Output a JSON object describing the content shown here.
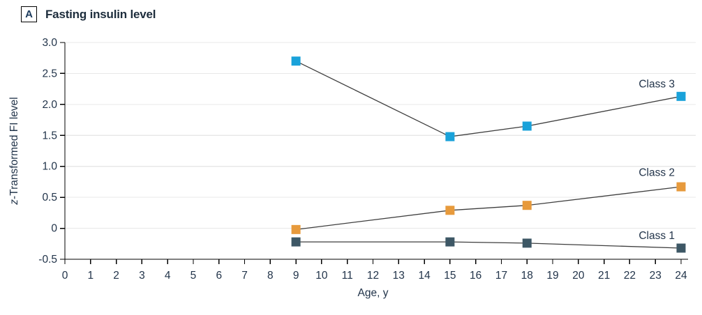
{
  "panel": {
    "label": "A",
    "title": "Fasting insulin level"
  },
  "chart_data": {
    "type": "line",
    "x": [
      9,
      15,
      18,
      24
    ],
    "series": [
      {
        "name": "Class 3",
        "color": "#1aa2da",
        "values": [
          2.7,
          1.48,
          1.65,
          2.13
        ],
        "label_y": 2.33
      },
      {
        "name": "Class 2",
        "color": "#e79a3c",
        "values": [
          -0.02,
          0.29,
          0.37,
          0.67
        ],
        "label_y": 0.9
      },
      {
        "name": "Class 1",
        "color": "#3d5765",
        "values": [
          -0.22,
          -0.22,
          -0.24,
          -0.32
        ],
        "label_y": -0.12
      }
    ],
    "xlabel": "Age, y",
    "ylabel_italic": "z",
    "ylabel_rest": "-Transformed FI level",
    "xlim": [
      0,
      24
    ],
    "ylim": [
      -0.5,
      3.0
    ],
    "x_ticks": [
      0,
      1,
      2,
      3,
      4,
      5,
      6,
      7,
      8,
      9,
      10,
      11,
      12,
      13,
      14,
      15,
      16,
      17,
      18,
      19,
      20,
      21,
      22,
      23,
      24
    ],
    "y_ticks": [
      -0.5,
      0,
      0.5,
      1.0,
      1.5,
      2.0,
      2.5,
      3.0
    ],
    "y_tick_labels": [
      "-0.5",
      "0",
      "0.5",
      "1.0",
      "1.5",
      "2.0",
      "2.5",
      "3.0"
    ],
    "grid": true,
    "legend_position": "right-inline",
    "marker": "square",
    "colors": {
      "line": "#3e3e3e",
      "axis": "#000000",
      "gridline": "#e8e8e8",
      "text": "#22344a"
    }
  }
}
